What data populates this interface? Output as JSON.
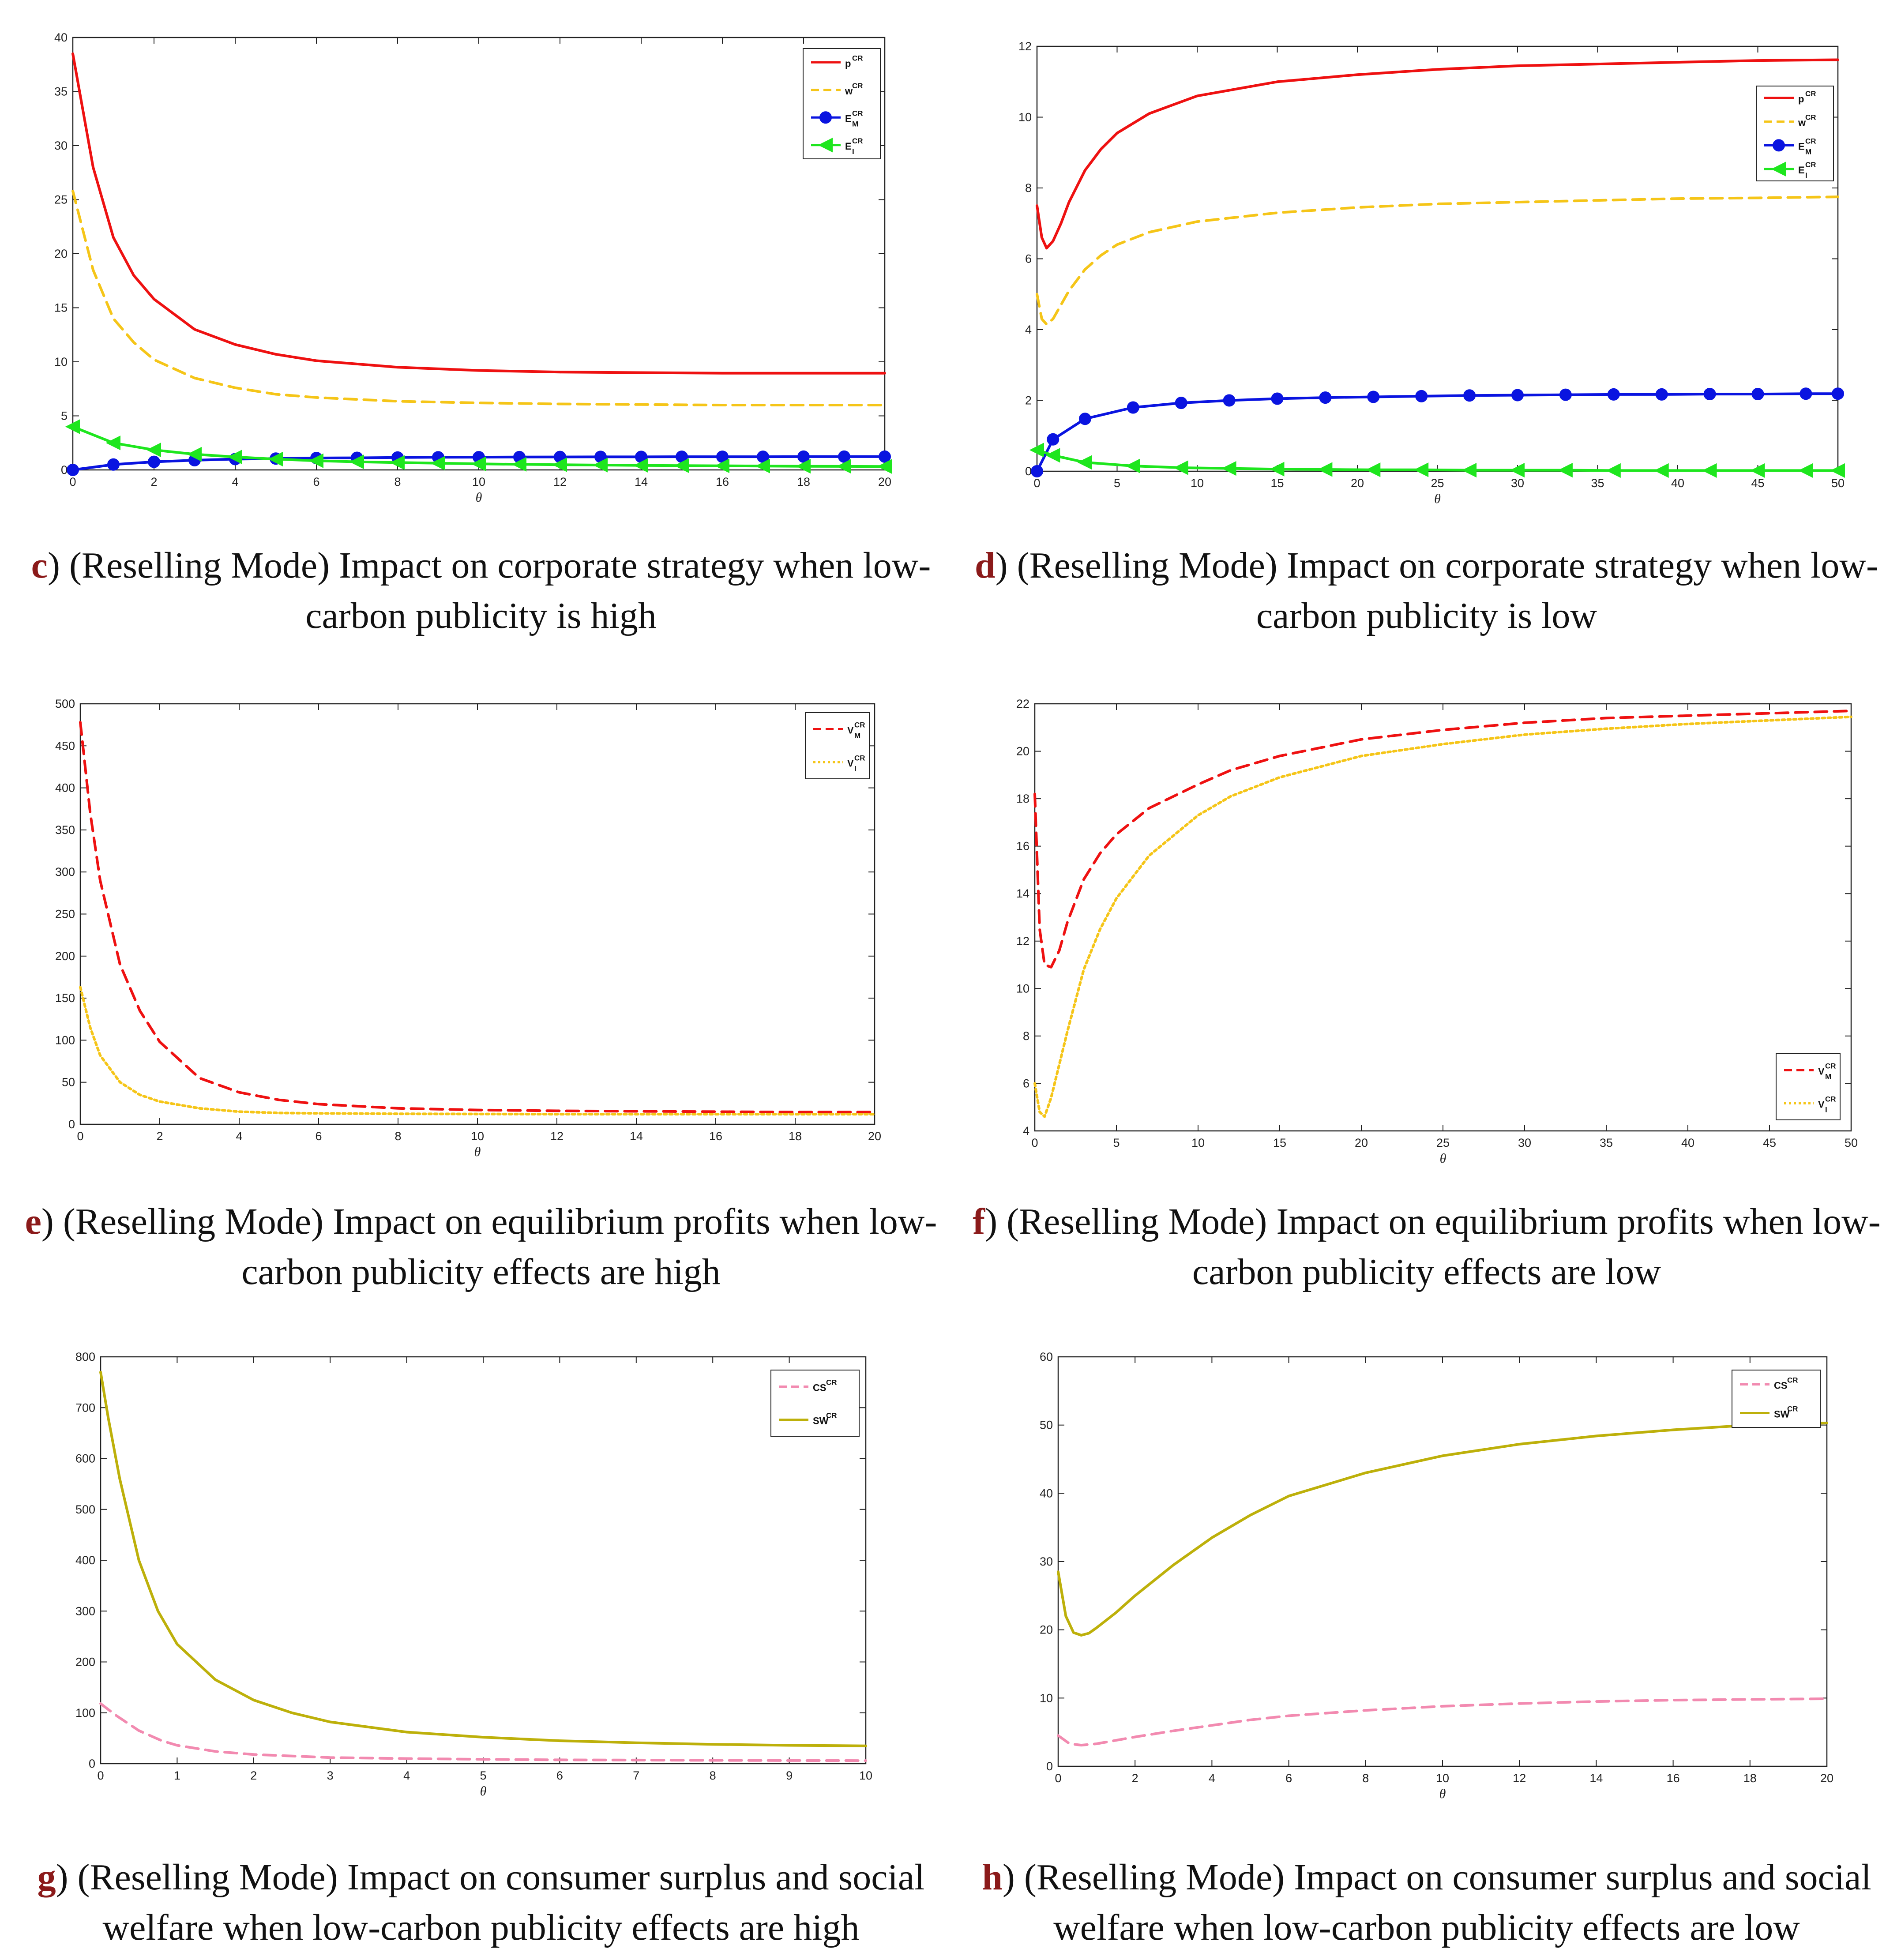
{
  "chart_data": [
    {
      "id": "c",
      "type": "line",
      "xlabel": "θ",
      "xlim": [
        0,
        20
      ],
      "xticks": [
        0,
        2,
        4,
        6,
        8,
        10,
        12,
        14,
        16,
        18,
        20
      ],
      "ylim": [
        0,
        40
      ],
      "yticks": [
        0,
        5,
        10,
        15,
        20,
        25,
        30,
        35,
        40
      ],
      "legend_position": "top-right",
      "caption": {
        "letter": "c",
        "text": ") (Reselling Mode) Impact on corporate strategy when low-carbon publicity is high"
      },
      "series": [
        {
          "name": "p",
          "sup": "CR",
          "sub": "",
          "color": "#ee1111",
          "style": "solid",
          "marker": "none",
          "x": [
            0,
            0.5,
            1,
            1.5,
            2,
            3,
            4,
            5,
            6,
            8,
            10,
            12,
            14,
            16,
            18,
            20
          ],
          "y": [
            38.5,
            28,
            21.5,
            18,
            15.8,
            13,
            11.6,
            10.7,
            10.1,
            9.5,
            9.2,
            9.05,
            9.0,
            8.95,
            8.95,
            8.95
          ]
        },
        {
          "name": "w",
          "sup": "CR",
          "sub": "",
          "color": "#f5c518",
          "style": "dashed",
          "marker": "none",
          "x": [
            0,
            0.5,
            1,
            1.5,
            2,
            3,
            4,
            5,
            6,
            8,
            10,
            12,
            14,
            16,
            18,
            20
          ],
          "y": [
            25.8,
            18.5,
            14,
            11.8,
            10.2,
            8.5,
            7.6,
            7.0,
            6.7,
            6.35,
            6.2,
            6.1,
            6.05,
            6.0,
            6.0,
            6.0
          ]
        },
        {
          "name": "E",
          "sup": "CR",
          "sub": "M",
          "color": "#0a14e0",
          "style": "solid",
          "marker": "circle",
          "x": [
            0,
            1,
            2,
            3,
            4,
            5,
            6,
            7,
            8,
            9,
            10,
            11,
            12,
            13,
            14,
            15,
            16,
            17,
            18,
            19,
            20
          ],
          "y": [
            0,
            0.5,
            0.75,
            0.9,
            1.0,
            1.05,
            1.1,
            1.12,
            1.15,
            1.17,
            1.18,
            1.19,
            1.2,
            1.21,
            1.21,
            1.22,
            1.22,
            1.22,
            1.23,
            1.23,
            1.23
          ]
        },
        {
          "name": "E",
          "sup": "CR",
          "sub": "I",
          "color": "#1ee61e",
          "style": "solid",
          "marker": "triangle-left",
          "x": [
            0,
            1,
            2,
            3,
            4,
            5,
            6,
            7,
            8,
            9,
            10,
            11,
            12,
            13,
            14,
            15,
            16,
            17,
            18,
            19,
            20
          ],
          "y": [
            4.0,
            2.5,
            1.85,
            1.45,
            1.2,
            1.0,
            0.85,
            0.75,
            0.68,
            0.62,
            0.56,
            0.52,
            0.48,
            0.45,
            0.42,
            0.4,
            0.38,
            0.36,
            0.34,
            0.33,
            0.32
          ]
        }
      ]
    },
    {
      "id": "d",
      "type": "line",
      "xlabel": "θ",
      "xlim": [
        0,
        50
      ],
      "xticks": [
        0,
        5,
        10,
        15,
        20,
        25,
        30,
        35,
        40,
        45,
        50
      ],
      "ylim": [
        0,
        12
      ],
      "yticks": [
        0,
        2,
        4,
        6,
        8,
        10,
        12
      ],
      "legend_position": "top-right",
      "caption": {
        "letter": "d",
        "text": ") (Reselling Mode) Impact on corporate strategy when low-carbon publicity is low"
      },
      "series": [
        {
          "name": "p",
          "sup": "CR",
          "sub": "",
          "color": "#ee1111",
          "style": "solid",
          "marker": "none",
          "x": [
            0,
            0.3,
            0.6,
            1,
            1.5,
            2,
            3,
            4,
            5,
            7,
            10,
            15,
            20,
            25,
            30,
            35,
            40,
            45,
            50
          ],
          "y": [
            7.5,
            6.6,
            6.3,
            6.5,
            7.0,
            7.6,
            8.5,
            9.1,
            9.55,
            10.1,
            10.6,
            11.0,
            11.2,
            11.35,
            11.45,
            11.5,
            11.55,
            11.6,
            11.62
          ]
        },
        {
          "name": "w",
          "sup": "CR",
          "sub": "",
          "color": "#f5c518",
          "style": "dashed",
          "marker": "none",
          "x": [
            0,
            0.3,
            0.6,
            1,
            1.5,
            2,
            3,
            4,
            5,
            7,
            10,
            15,
            20,
            25,
            30,
            35,
            40,
            45,
            50
          ],
          "y": [
            5.0,
            4.3,
            4.15,
            4.3,
            4.7,
            5.1,
            5.7,
            6.1,
            6.4,
            6.75,
            7.05,
            7.3,
            7.45,
            7.55,
            7.6,
            7.65,
            7.7,
            7.72,
            7.75
          ]
        },
        {
          "name": "E",
          "sup": "CR",
          "sub": "M",
          "color": "#0a14e0",
          "style": "solid",
          "marker": "circle",
          "x": [
            0,
            1,
            3,
            6,
            9,
            12,
            15,
            18,
            21,
            24,
            27,
            30,
            33,
            36,
            39,
            42,
            45,
            48,
            50
          ],
          "y": [
            0,
            0.9,
            1.48,
            1.8,
            1.93,
            2.0,
            2.05,
            2.08,
            2.1,
            2.12,
            2.14,
            2.15,
            2.16,
            2.17,
            2.17,
            2.18,
            2.18,
            2.19,
            2.19
          ]
        },
        {
          "name": "E",
          "sup": "CR",
          "sub": "I",
          "color": "#1ee61e",
          "style": "solid",
          "marker": "triangle-left",
          "x": [
            0,
            1,
            3,
            6,
            9,
            12,
            15,
            18,
            21,
            24,
            27,
            30,
            33,
            36,
            39,
            42,
            45,
            48,
            50
          ],
          "y": [
            0.6,
            0.45,
            0.25,
            0.15,
            0.1,
            0.08,
            0.06,
            0.05,
            0.04,
            0.04,
            0.03,
            0.03,
            0.03,
            0.02,
            0.02,
            0.02,
            0.02,
            0.02,
            0.02
          ]
        }
      ]
    },
    {
      "id": "e",
      "type": "line",
      "xlabel": "θ",
      "xlim": [
        0,
        20
      ],
      "xticks": [
        0,
        2,
        4,
        6,
        8,
        10,
        12,
        14,
        16,
        18,
        20
      ],
      "ylim": [
        0,
        500
      ],
      "yticks": [
        0,
        50,
        100,
        150,
        200,
        250,
        300,
        350,
        400,
        450,
        500
      ],
      "legend_position": "top-right",
      "caption": {
        "letter": "e",
        "text": ") (Reselling Mode) Impact on equilibrium profits when low-carbon publicity effects are high"
      },
      "series": [
        {
          "name": "V",
          "sup": "CR",
          "sub": "M",
          "color": "#ee1111",
          "style": "dashed",
          "marker": "none",
          "x": [
            0,
            0.25,
            0.5,
            1,
            1.5,
            2,
            3,
            4,
            5,
            6,
            8,
            10,
            12,
            14,
            16,
            18,
            20
          ],
          "y": [
            478,
            370,
            290,
            190,
            135,
            98,
            55,
            38,
            29,
            24,
            19,
            17,
            16,
            15.5,
            15,
            14.5,
            14.5
          ]
        },
        {
          "name": "V",
          "sup": "CR",
          "sub": "I",
          "color": "#f5c518",
          "style": "dotted",
          "marker": "none",
          "x": [
            0,
            0.25,
            0.5,
            1,
            1.5,
            2,
            3,
            4,
            5,
            6,
            8,
            10,
            12,
            14,
            16,
            18,
            20
          ],
          "y": [
            163,
            115,
            82,
            50,
            35,
            27,
            19,
            15,
            13.5,
            13,
            12.5,
            12.2,
            12,
            12,
            12,
            12,
            12
          ]
        }
      ]
    },
    {
      "id": "f",
      "type": "line",
      "xlabel": "θ",
      "xlim": [
        0,
        50
      ],
      "xticks": [
        0,
        5,
        10,
        15,
        20,
        25,
        30,
        35,
        40,
        45,
        50
      ],
      "ylim": [
        4,
        22
      ],
      "yticks": [
        4,
        6,
        8,
        10,
        12,
        14,
        16,
        18,
        20,
        22
      ],
      "legend_position": "bottom-right",
      "caption": {
        "letter": "f",
        "text": ") (Reselling Mode) Impact on equilibrium profits when low-carbon publicity effects are low"
      },
      "series": [
        {
          "name": "V",
          "sup": "CR",
          "sub": "M",
          "color": "#ee1111",
          "style": "dashed",
          "marker": "none",
          "x": [
            0,
            0.3,
            0.6,
            1,
            1.5,
            2,
            3,
            4,
            5,
            7,
            10,
            12,
            15,
            20,
            25,
            30,
            35,
            40,
            45,
            50
          ],
          "y": [
            18.2,
            12.5,
            11.0,
            10.9,
            11.6,
            12.8,
            14.6,
            15.7,
            16.5,
            17.6,
            18.6,
            19.2,
            19.8,
            20.5,
            20.9,
            21.2,
            21.4,
            21.5,
            21.6,
            21.7
          ]
        },
        {
          "name": "V",
          "sup": "CR",
          "sub": "I",
          "color": "#f5c518",
          "style": "dotted",
          "marker": "none",
          "x": [
            0,
            0.3,
            0.6,
            1,
            1.5,
            2,
            3,
            4,
            5,
            7,
            10,
            12,
            15,
            20,
            25,
            30,
            35,
            40,
            45,
            50
          ],
          "y": [
            6.0,
            4.8,
            4.6,
            5.4,
            6.8,
            8.2,
            10.8,
            12.5,
            13.8,
            15.6,
            17.3,
            18.1,
            18.9,
            19.8,
            20.3,
            20.7,
            20.95,
            21.15,
            21.3,
            21.45
          ]
        }
      ]
    },
    {
      "id": "g",
      "type": "line",
      "xlabel": "θ",
      "xlim": [
        0,
        10
      ],
      "xticks": [
        0,
        1,
        2,
        3,
        4,
        5,
        6,
        7,
        8,
        9,
        10
      ],
      "ylim": [
        0,
        800
      ],
      "yticks": [
        0,
        100,
        200,
        300,
        400,
        500,
        600,
        700,
        800
      ],
      "legend_position": "top-right",
      "caption": {
        "letter": "g",
        "text": ") (Reselling Mode) Impact on consumer surplus and social welfare when low-carbon publicity effects are high"
      },
      "series": [
        {
          "name": "CS",
          "sup": "CR",
          "sub": "",
          "color": "#f28ab0",
          "style": "dashed",
          "marker": "none",
          "x": [
            0,
            0.2,
            0.5,
            0.8,
            1,
            1.5,
            2,
            3,
            4,
            5,
            6,
            7,
            8,
            9,
            10
          ],
          "y": [
            118,
            95,
            65,
            45,
            36,
            24,
            18,
            12,
            10,
            8.5,
            7.5,
            7,
            6.5,
            6.2,
            6
          ]
        },
        {
          "name": "SW",
          "sup": "CR",
          "sub": "",
          "color": "#bdb00a",
          "style": "solid",
          "marker": "none",
          "x": [
            0,
            0.1,
            0.25,
            0.5,
            0.75,
            1,
            1.5,
            2,
            2.5,
            3,
            4,
            5,
            6,
            7,
            8,
            9,
            10
          ],
          "y": [
            770,
            680,
            560,
            400,
            300,
            235,
            165,
            125,
            100,
            82,
            62,
            52,
            45,
            41,
            38,
            36,
            35
          ]
        }
      ]
    },
    {
      "id": "h",
      "type": "line",
      "xlabel": "θ",
      "xlim": [
        0,
        20
      ],
      "xticks": [
        0,
        2,
        4,
        6,
        8,
        10,
        12,
        14,
        16,
        18,
        20
      ],
      "ylim": [
        0,
        60
      ],
      "yticks": [
        0,
        10,
        20,
        30,
        40,
        50,
        60
      ],
      "legend_position": "top-right",
      "caption": {
        "letter": "h",
        "text": ") (Reselling Mode) Impact on consumer surplus and social welfare when low-carbon publicity effects are low"
      },
      "series": [
        {
          "name": "CS",
          "sup": "CR",
          "sub": "",
          "color": "#f28ab0",
          "style": "dashed",
          "marker": "none",
          "x": [
            0,
            0.3,
            0.6,
            1,
            1.5,
            2,
            3,
            4,
            5,
            6,
            8,
            10,
            12,
            14,
            16,
            18,
            20
          ],
          "y": [
            4.5,
            3.3,
            3.1,
            3.3,
            3.8,
            4.3,
            5.2,
            6.0,
            6.8,
            7.4,
            8.2,
            8.8,
            9.2,
            9.5,
            9.7,
            9.8,
            9.9
          ]
        },
        {
          "name": "SW",
          "sup": "CR",
          "sub": "",
          "color": "#bdb00a",
          "style": "solid",
          "marker": "none",
          "x": [
            0,
            0.2,
            0.4,
            0.6,
            0.8,
            1,
            1.5,
            2,
            3,
            4,
            5,
            6,
            8,
            10,
            12,
            14,
            16,
            18,
            20
          ],
          "y": [
            28.5,
            22,
            19.6,
            19.2,
            19.5,
            20.3,
            22.5,
            25,
            29.5,
            33.5,
            36.8,
            39.6,
            43.0,
            45.5,
            47.2,
            48.4,
            49.3,
            50.0,
            50.3
          ]
        }
      ]
    }
  ]
}
